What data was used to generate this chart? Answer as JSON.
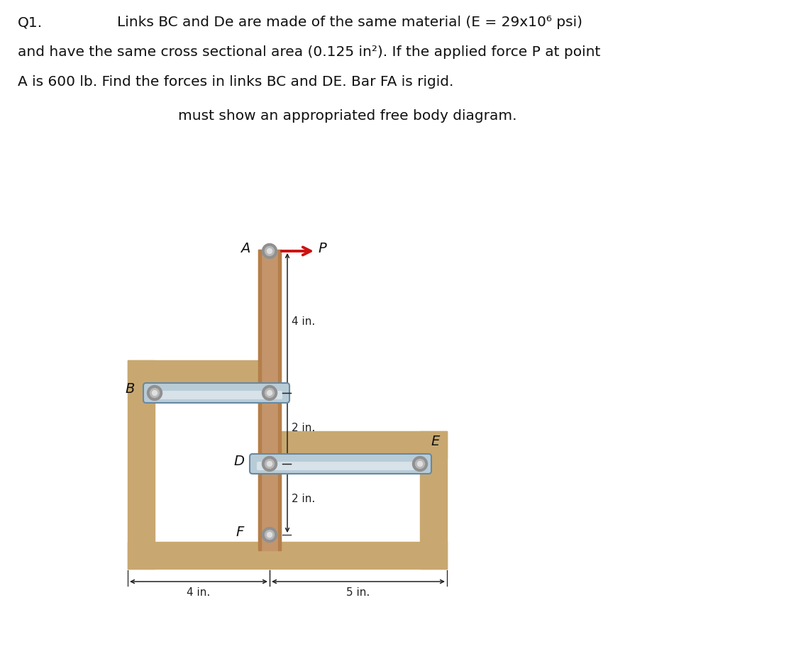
{
  "title_line1_left": "Q1.",
  "title_line1_right": "Links BC and De are made of the same material (E = 29x10⁶ psi)",
  "title_line2": "and have the same cross sectional area (0.125 in²). If the applied force P at point",
  "title_line3": "A is 600 lb. Find the forces in links BC and DE. Bar FA is rigid.",
  "subtitle": "must show an appropriated free body diagram.",
  "bg_color": "#ffffff",
  "wall_color": "#c8a870",
  "bar_color_main": "#c4956a",
  "bar_color_edge": "#a07040",
  "link_color": "#b8ccd8",
  "link_edge_color": "#6888a0",
  "pin_outer": "#909090",
  "pin_mid": "#b8b8b8",
  "pin_inner": "#e0e0e0",
  "arrow_color": "#cc1111",
  "dim_color": "#222222",
  "label_color": "#111111",
  "title_fs": 14.5,
  "dim_fs": 11,
  "label_fs": 14
}
